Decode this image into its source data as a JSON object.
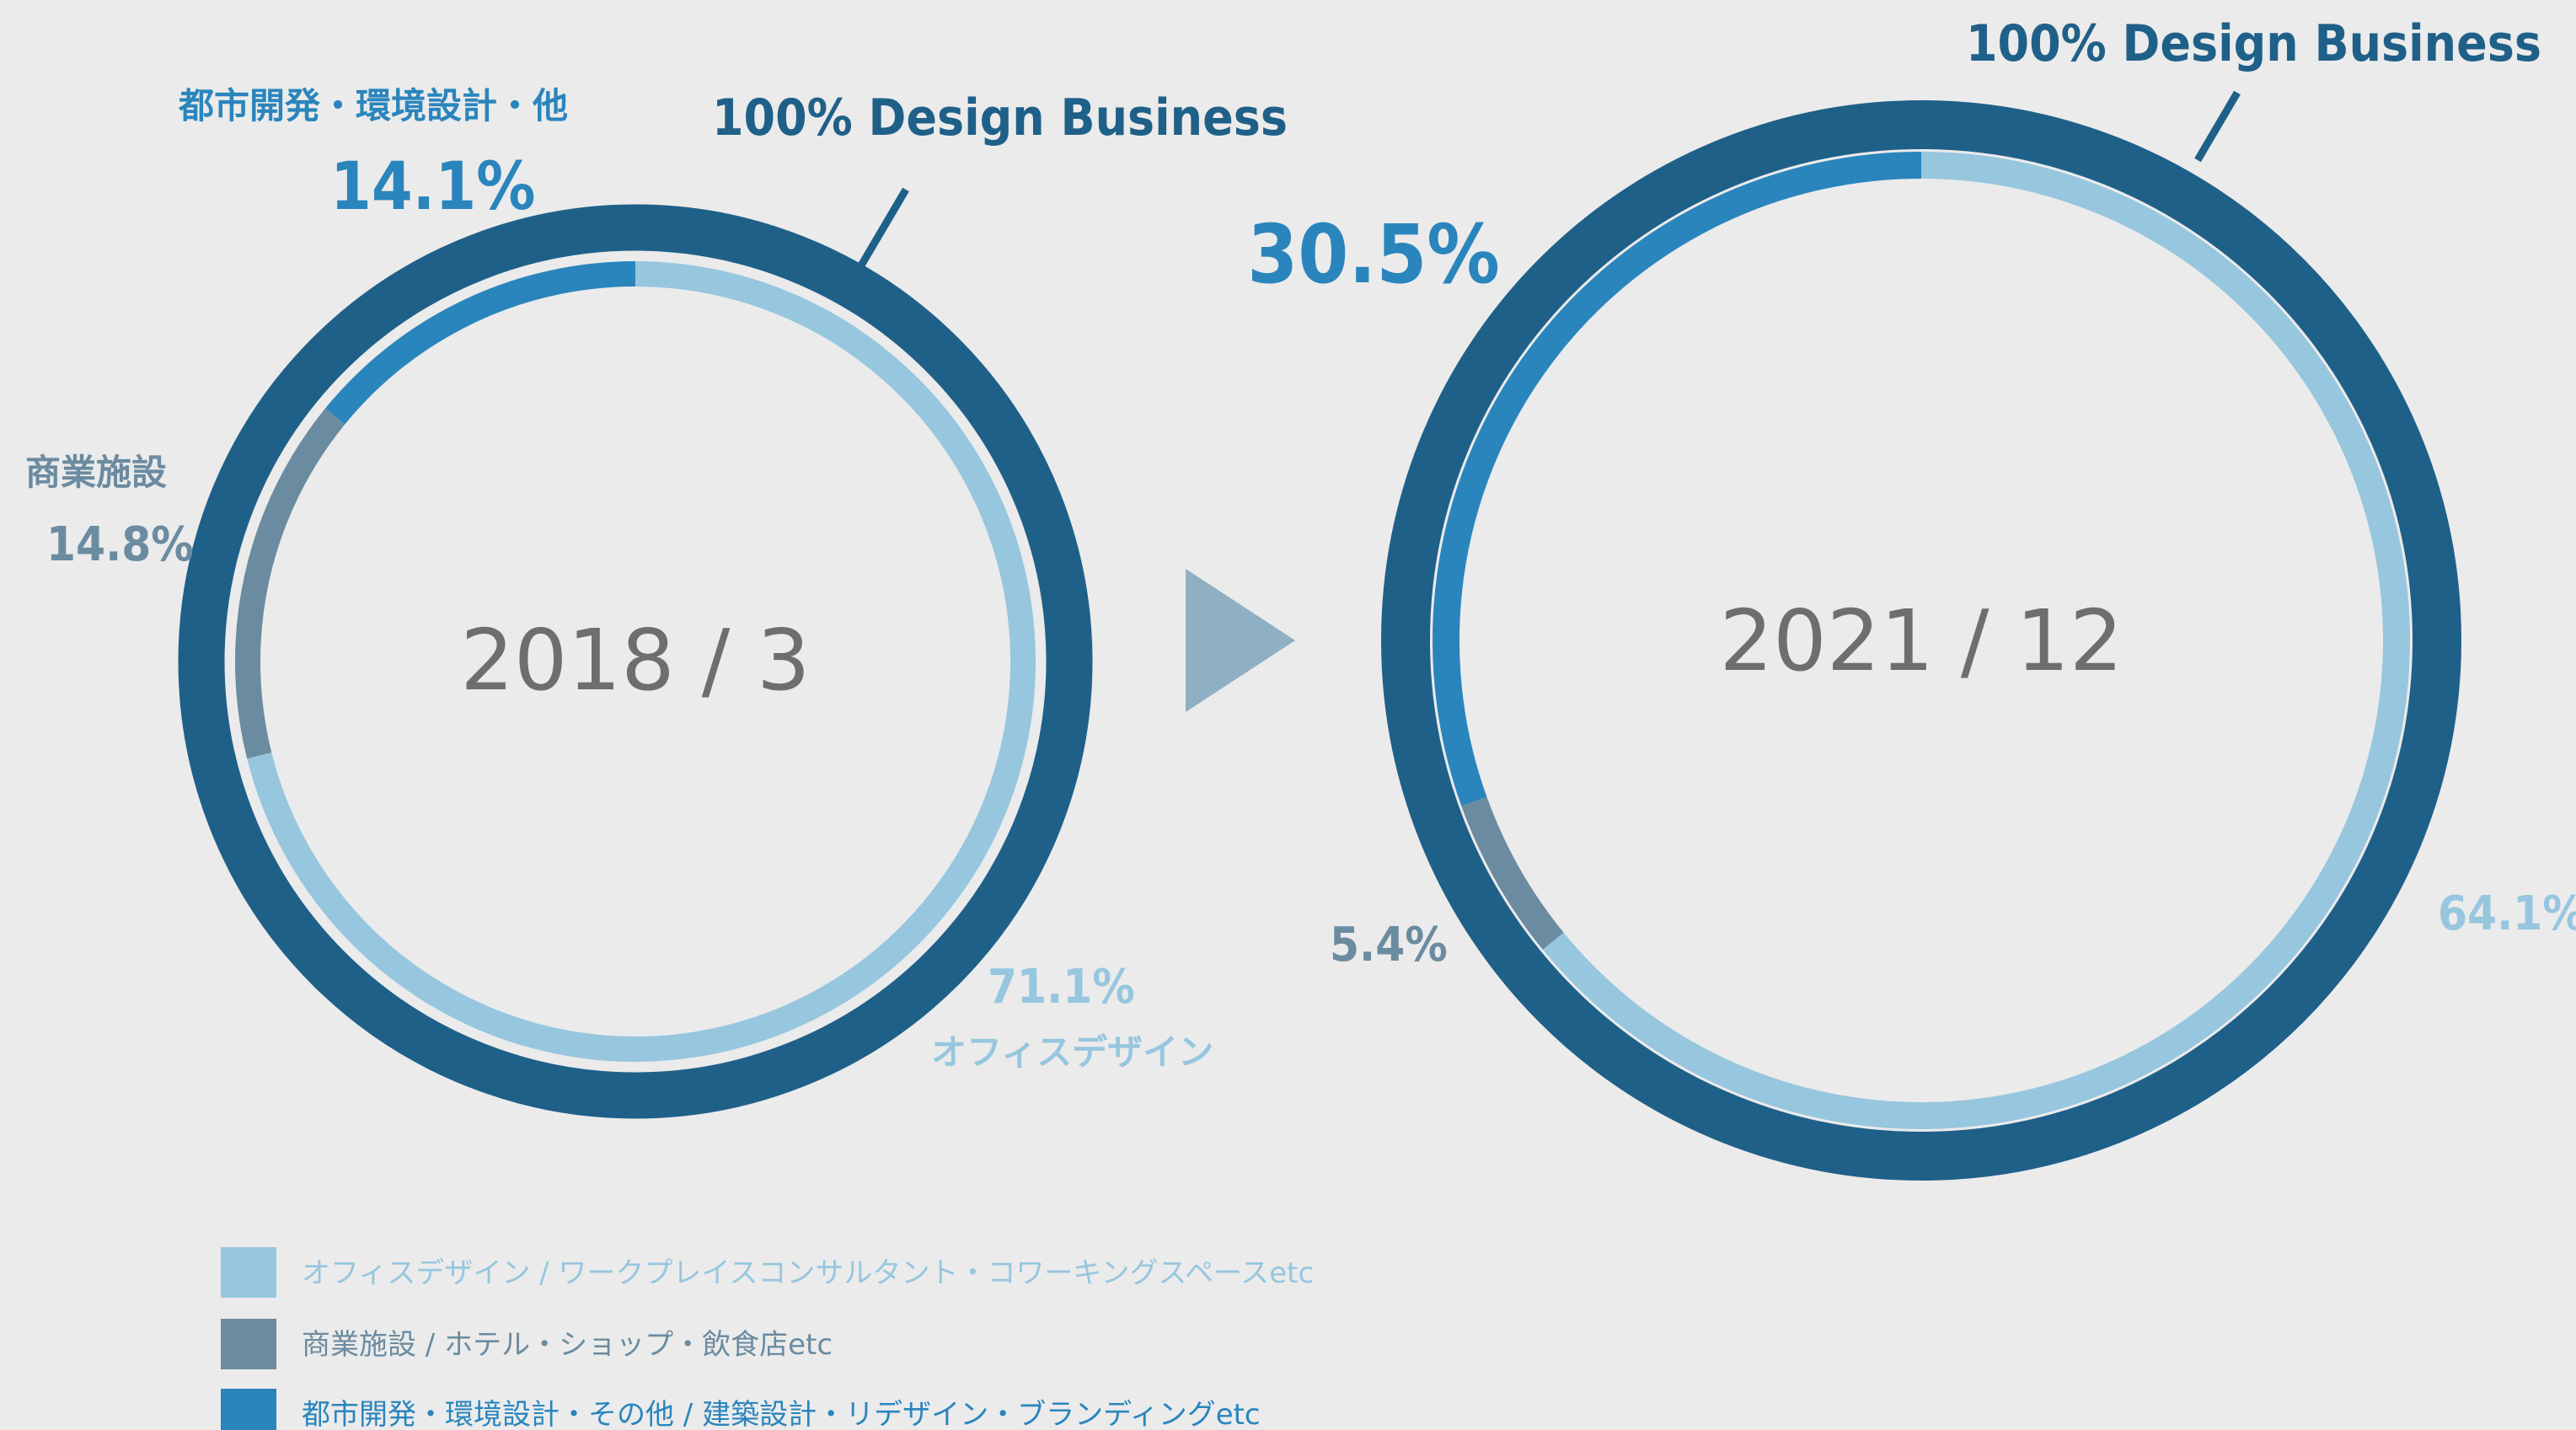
{
  "colors": {
    "background": "#ebebeb",
    "outer_ring": "#1f6089",
    "office": "#97c6df",
    "commercial": "#6b8ba0",
    "urban": "#2a85bd",
    "arrow": "#8fafc3",
    "center_text": "#6e6e6e"
  },
  "chart_data": [
    {
      "type": "donut",
      "center_label": "2018 / 3",
      "outer_label": "100% Design Business",
      "segments": [
        {
          "key": "office",
          "label": "オフィスデザイン",
          "value": 71.1,
          "display": "71.1%"
        },
        {
          "key": "commercial",
          "label": "商業施設",
          "value": 14.8,
          "display": "14.8%"
        },
        {
          "key": "urban",
          "label": "都市開発・環境設計・他",
          "value": 14.1,
          "display": "14.1%"
        }
      ]
    },
    {
      "type": "donut",
      "center_label": "2021 / 12",
      "outer_label": "100% Design Business",
      "segments": [
        {
          "key": "office",
          "label": "",
          "value": 64.1,
          "display": "64.1%"
        },
        {
          "key": "commercial",
          "label": "",
          "value": 5.4,
          "display": "5.4%"
        },
        {
          "key": "urban",
          "label": "",
          "value": 30.5,
          "display": "30.5%"
        }
      ]
    }
  ],
  "legend": [
    {
      "key": "office",
      "label": "オフィスデザイン / ワークプレイスコンサルタント・コワーキングスペースetc"
    },
    {
      "key": "commercial",
      "label": "商業施設 / ホテル・ショップ・飲食店etc"
    },
    {
      "key": "urban",
      "label": "都市開発・環境設計・その他 / 建築設計・リデザイン・ブランディングetc"
    }
  ],
  "arrow_icon": "triangle-right-icon"
}
